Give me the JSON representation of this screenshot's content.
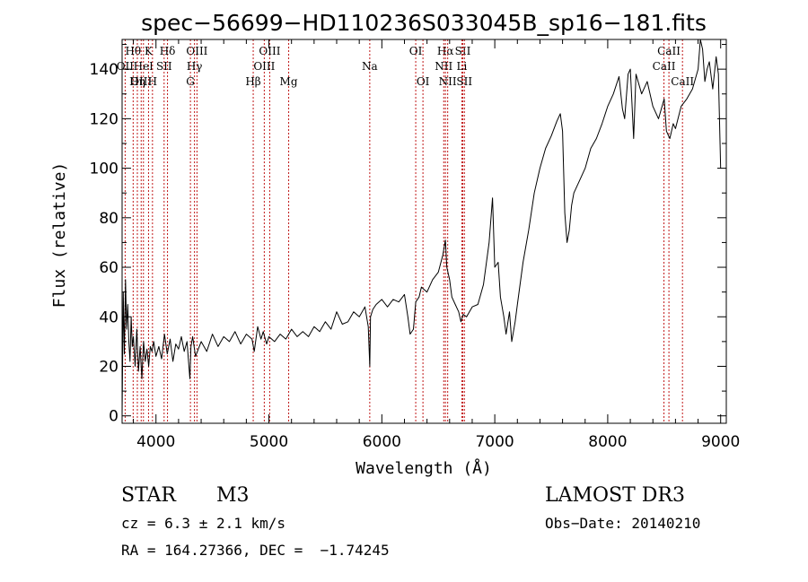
{
  "chart_data": {
    "type": "line",
    "title": "spec−56699−HD110236S033045B_sp16−181.fits",
    "xlabel": "Wavelength (Å)",
    "ylabel": "Flux (relative)",
    "xlim": [
      3700,
      9050
    ],
    "ylim": [
      -3,
      152
    ],
    "xticks": [
      4000,
      5000,
      6000,
      7000,
      8000,
      9000
    ],
    "yticks": [
      0,
      20,
      40,
      60,
      80,
      100,
      120,
      140
    ],
    "grid": false,
    "series": [
      {
        "name": "spectrum",
        "x": [
          3700,
          3710,
          3720,
          3730,
          3740,
          3750,
          3760,
          3770,
          3780,
          3790,
          3800,
          3815,
          3830,
          3845,
          3860,
          3875,
          3890,
          3905,
          3920,
          3935,
          3950,
          3965,
          3980,
          4000,
          4025,
          4050,
          4075,
          4100,
          4125,
          4150,
          4175,
          4200,
          4225,
          4250,
          4275,
          4300,
          4310,
          4325,
          4350,
          4400,
          4450,
          4500,
          4550,
          4600,
          4650,
          4700,
          4750,
          4800,
          4850,
          4870,
          4900,
          4930,
          4950,
          4980,
          5000,
          5050,
          5100,
          5150,
          5200,
          5250,
          5300,
          5350,
          5400,
          5450,
          5500,
          5550,
          5600,
          5650,
          5700,
          5750,
          5800,
          5850,
          5880,
          5893,
          5900,
          5920,
          5950,
          6000,
          6050,
          6100,
          6150,
          6200,
          6230,
          6250,
          6280,
          6300,
          6330,
          6350,
          6400,
          6450,
          6500,
          6540,
          6563,
          6575,
          6600,
          6620,
          6650,
          6680,
          6700,
          6720,
          6750,
          6800,
          6850,
          6900,
          6950,
          6980,
          7000,
          7030,
          7050,
          7080,
          7100,
          7130,
          7150,
          7180,
          7200,
          7250,
          7300,
          7350,
          7400,
          7450,
          7500,
          7550,
          7580,
          7600,
          7620,
          7640,
          7660,
          7680,
          7700,
          7750,
          7800,
          7850,
          7900,
          7950,
          8000,
          8050,
          8100,
          8130,
          8150,
          8180,
          8200,
          8230,
          8250,
          8300,
          8350,
          8400,
          8450,
          8500,
          8520,
          8550,
          8580,
          8600,
          8650,
          8700,
          8750,
          8800,
          8820,
          8840,
          8860,
          8880,
          8900,
          8930,
          8960,
          8980,
          9000
        ],
        "values": [
          0,
          50,
          25,
          55,
          35,
          45,
          30,
          22,
          40,
          28,
          32,
          20,
          35,
          18,
          28,
          15,
          30,
          22,
          27,
          20,
          28,
          26,
          30,
          24,
          28,
          23,
          33,
          25,
          31,
          22,
          29,
          27,
          32,
          26,
          30,
          15,
          28,
          32,
          24,
          30,
          26,
          33,
          28,
          32,
          30,
          34,
          29,
          33,
          31,
          26,
          36,
          31,
          34,
          29,
          32,
          30,
          33,
          31,
          35,
          32,
          34,
          32,
          36,
          34,
          38,
          35,
          42,
          37,
          38,
          42,
          40,
          44,
          36,
          20,
          40,
          43,
          45,
          47,
          44,
          47,
          46,
          49,
          40,
          33,
          35,
          46,
          48,
          52,
          50,
          55,
          58,
          65,
          71,
          60,
          55,
          48,
          45,
          42,
          38,
          41,
          40,
          44,
          45,
          53,
          70,
          88,
          60,
          62,
          48,
          40,
          33,
          42,
          30,
          38,
          45,
          62,
          75,
          90,
          100,
          108,
          113,
          119,
          122,
          115,
          82,
          70,
          75,
          85,
          90,
          95,
          100,
          108,
          112,
          118,
          125,
          130,
          137,
          124,
          120,
          138,
          140,
          112,
          138,
          130,
          135,
          125,
          120,
          128,
          115,
          112,
          118,
          116,
          125,
          128,
          132,
          140,
          152,
          148,
          135,
          140,
          143,
          132,
          145,
          138,
          100
        ]
      }
    ],
    "spectral_lines": [
      {
        "label": "Hθ",
        "x": 3798,
        "row": 1
      },
      {
        "label": "OII",
        "x": 3727,
        "row": 2
      },
      {
        "label": "OIII",
        "x": 3869,
        "row": 3
      },
      {
        "label": "K",
        "x": 3934,
        "row": 1
      },
      {
        "label": "HeI",
        "x": 3889,
        "row": 2
      },
      {
        "label": "Hη",
        "x": 3835,
        "row": 3
      },
      {
        "label": "Hδ",
        "x": 4102,
        "row": 1
      },
      {
        "label": "SII",
        "x": 4072,
        "row": 2
      },
      {
        "label": "H",
        "x": 3969,
        "row": 3
      },
      {
        "label": "OIII",
        "x": 4363,
        "row": 1
      },
      {
        "label": "Hγ",
        "x": 4341,
        "row": 2
      },
      {
        "label": "G",
        "x": 4305,
        "row": 3
      },
      {
        "label": "OIII",
        "x": 5007,
        "row": 1
      },
      {
        "label": "OIII",
        "x": 4959,
        "row": 2
      },
      {
        "label": "Hβ",
        "x": 4861,
        "row": 3
      },
      {
        "label": "Mg",
        "x": 5175,
        "row": 3
      },
      {
        "label": "Na",
        "x": 5893,
        "row": 2
      },
      {
        "label": "OI",
        "x": 6300,
        "row": 1
      },
      {
        "label": "OI",
        "x": 6364,
        "row": 3
      },
      {
        "label": "Hα",
        "x": 6563,
        "row": 1
      },
      {
        "label": "NII",
        "x": 6548,
        "row": 2
      },
      {
        "label": "NII",
        "x": 6583,
        "row": 3
      },
      {
        "label": "SII",
        "x": 6717,
        "row": 1
      },
      {
        "label": "Li",
        "x": 6708,
        "row": 2
      },
      {
        "label": "SII",
        "x": 6731,
        "row": 3
      },
      {
        "label": "CaII",
        "x": 8542,
        "row": 1
      },
      {
        "label": "CaII",
        "x": 8498,
        "row": 2
      },
      {
        "label": "CaII",
        "x": 8662,
        "row": 3
      }
    ]
  },
  "info": {
    "object_class": "STAR",
    "subclass": "M3",
    "survey": "LAMOST DR3",
    "cz": "cz = 6.3 ± 2.1 km/s",
    "obs_date": "Obs−Date: 20140210",
    "coords": "RA = 164.27366, DEC =  −1.74245"
  }
}
